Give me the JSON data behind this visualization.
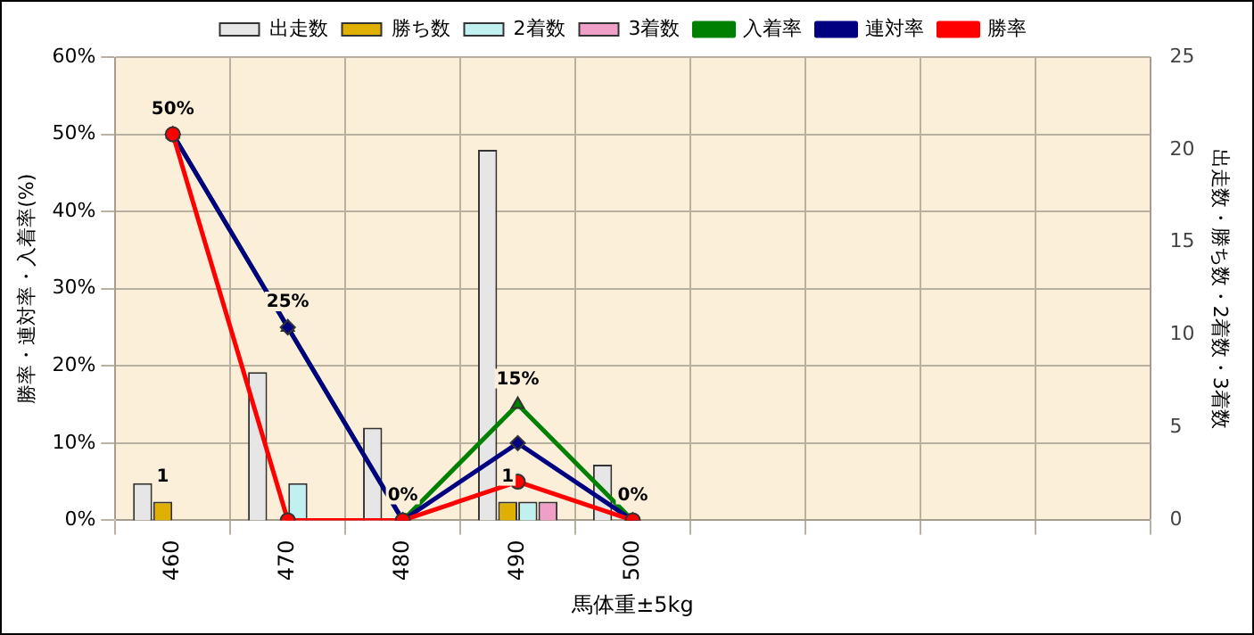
{
  "chart_data": {
    "type": "bar",
    "xlabel": "馬体重±5kg",
    "ylabel": "勝率・連対率・入着率(%)",
    "y2label": "出走数・勝ち数・2着数・3着数",
    "categories": [
      "460",
      "470",
      "480",
      "490",
      "500",
      null,
      null,
      null,
      null
    ],
    "series": [
      {
        "name": "出走数",
        "axis": "y2",
        "color": "#e6e6e6",
        "values": [
          2,
          8,
          5,
          20,
          3,
          null,
          null,
          null,
          null
        ]
      },
      {
        "name": "勝ち数",
        "axis": "y2",
        "color": "#e0b000",
        "values": [
          1,
          0,
          0,
          1,
          0,
          null,
          null,
          null,
          null
        ],
        "value_labels": [
          "1",
          null,
          null,
          "1",
          null,
          null,
          null,
          null,
          null
        ]
      },
      {
        "name": "2着数",
        "axis": "y2",
        "color": "#c0f0f0",
        "values": [
          0,
          2,
          0,
          1,
          0,
          null,
          null,
          null,
          null
        ]
      },
      {
        "name": "3着数",
        "axis": "y2",
        "color": "#f0a0c8",
        "values": [
          0,
          0,
          0,
          1,
          0,
          null,
          null,
          null,
          null
        ]
      },
      {
        "name": "入着率",
        "type": "line",
        "color": "#008000",
        "marker": "triangle",
        "values": [
          50,
          25,
          0,
          15,
          0,
          null,
          null,
          null,
          null
        ],
        "value_labels": [
          "50%",
          "25%",
          "0%",
          "15%",
          "0%",
          null,
          null,
          null,
          null
        ]
      },
      {
        "name": "連対率",
        "type": "line",
        "color": "#000080",
        "marker": "diamond",
        "values": [
          50,
          25,
          0,
          10,
          0,
          null,
          null,
          null,
          null
        ]
      },
      {
        "name": "勝率",
        "type": "line",
        "color": "#ff0000",
        "marker": "circle",
        "values": [
          50,
          0,
          0,
          5,
          0,
          null,
          null,
          null,
          null
        ]
      }
    ],
    "ylim": [
      0,
      60
    ],
    "yticks": [
      {
        "value": 0,
        "label": "0%"
      },
      {
        "value": 10,
        "label": "10%"
      },
      {
        "value": 20,
        "label": "20%"
      },
      {
        "value": 30,
        "label": "30%"
      },
      {
        "value": 40,
        "label": "40%"
      },
      {
        "value": 50,
        "label": "50%"
      },
      {
        "value": 60,
        "label": "60%"
      }
    ],
    "y2lim": [
      0,
      25
    ],
    "y2ticks": [
      0,
      5,
      10,
      15,
      20,
      25
    ],
    "grid": true,
    "legend": "top"
  }
}
